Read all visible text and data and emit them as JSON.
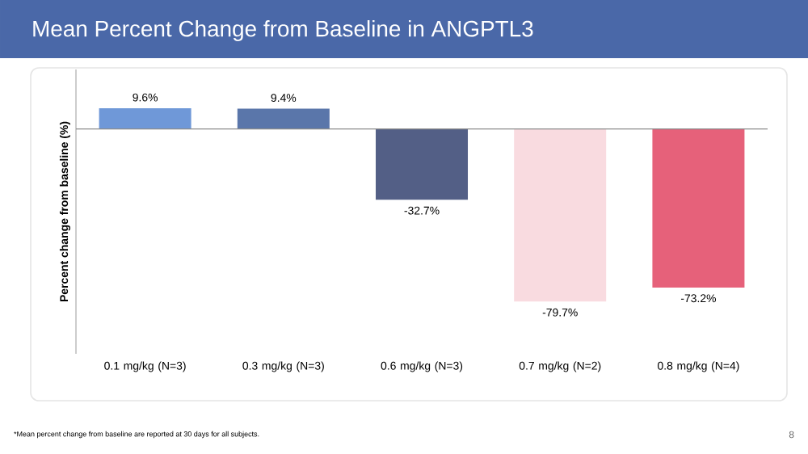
{
  "chart_data": {
    "type": "bar",
    "title": "Mean Percent Change from Baseline in ANGPTL3",
    "ylabel": "Percent change from baseline (%)",
    "categories": [
      "0.1 mg/kg (N=3)",
      "0.3 mg/kg (N=3)",
      "0.6 mg/kg (N=3)",
      "0.7 mg/kg (N=2)",
      "0.8 mg/kg (N=4)"
    ],
    "values": [
      9.6,
      9.4,
      -32.7,
      -79.7,
      -73.2
    ],
    "value_labels": [
      "9.6%",
      "9.4%",
      "-32.7%",
      "-79.7%",
      "-73.2%"
    ],
    "colors": [
      "#6f98d8",
      "#5a76aa",
      "#535f86",
      "#f9dbe0",
      "#e6617a"
    ],
    "annotations": [
      "*Mean percent change from baseline are reported at 30 days for all subjects.",
      "8"
    ]
  }
}
